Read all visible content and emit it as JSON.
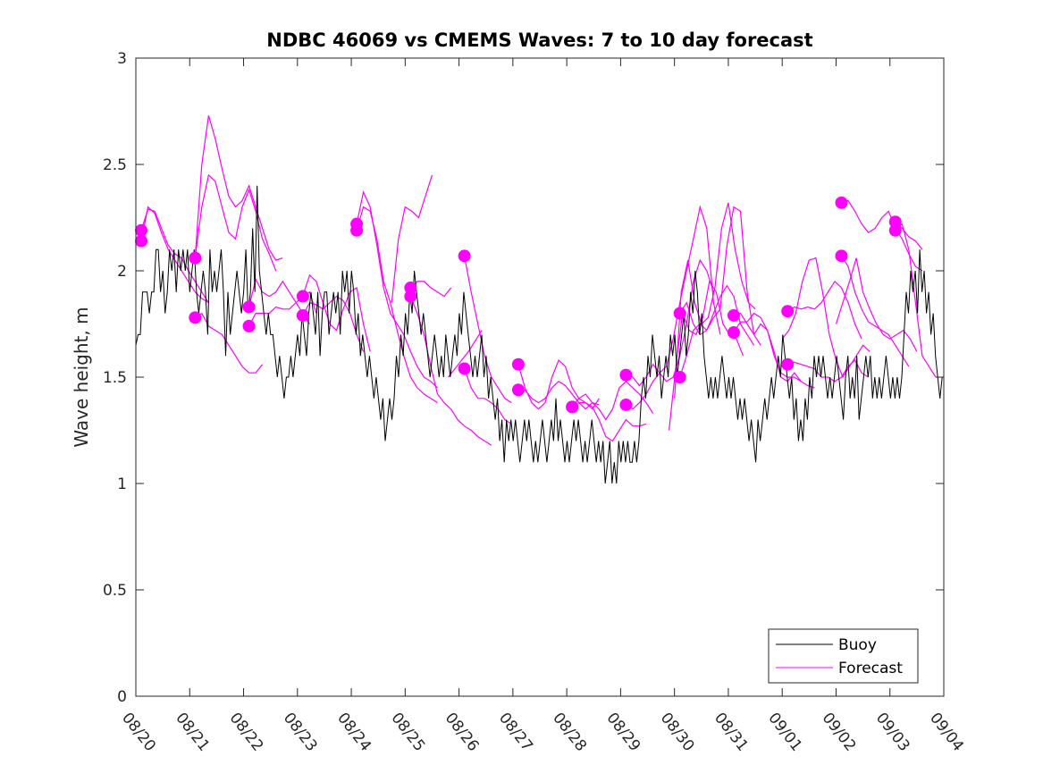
{
  "chart_data": {
    "type": "line",
    "title": "NDBC 46069 vs CMEMS Waves: 7 to 10 day forecast",
    "xlabel": "",
    "ylabel": "Wave height, m",
    "xlim_days": [
      0,
      15
    ],
    "ylim": [
      0,
      3
    ],
    "x_ticks": [
      "08/20",
      "08/21",
      "08/22",
      "08/23",
      "08/24",
      "08/25",
      "08/26",
      "08/27",
      "08/28",
      "08/29",
      "08/30",
      "08/31",
      "09/01",
      "09/02",
      "09/03",
      "09/04"
    ],
    "y_ticks": [
      0,
      0.5,
      1,
      1.5,
      2,
      2.5,
      3
    ],
    "y_tick_labels": [
      "0",
      "0.5",
      "1",
      "1.5",
      "2",
      "2.5",
      "3"
    ],
    "grid": false,
    "legend": {
      "position": "bottom-right",
      "entries": [
        {
          "label": "Buoy",
          "color": "#000000"
        },
        {
          "label": "Forecast",
          "color": "#ff00ff"
        }
      ]
    },
    "colors": {
      "buoy": "#000000",
      "forecast": "#ff00ff",
      "axes": "#262626"
    },
    "x_unit": "days since 08/20 00:00",
    "buoy": {
      "name": "Buoy",
      "step_days": 0.0417,
      "values": [
        1.65,
        1.7,
        1.7,
        1.9,
        1.9,
        1.9,
        1.8,
        1.9,
        1.9,
        2.1,
        2.1,
        1.9,
        2.0,
        1.8,
        1.9,
        2.1,
        2.0,
        2.1,
        1.9,
        2.1,
        2.0,
        2.1,
        2.0,
        2.1,
        1.9,
        2.0,
        2.1,
        1.9,
        1.8,
        1.9,
        2.0,
        1.9,
        1.7,
        2.1,
        1.9,
        2.0,
        1.9,
        2.0,
        2.1,
        1.9,
        1.6,
        1.9,
        1.7,
        1.8,
        1.9,
        2.0,
        1.9,
        1.8,
        1.9,
        2.1,
        1.8,
        1.9,
        2.2,
        1.9,
        2.4,
        2.0,
        1.9,
        1.8,
        1.7,
        1.8,
        1.7,
        1.7,
        1.6,
        1.5,
        1.6,
        1.5,
        1.4,
        1.5,
        1.5,
        1.6,
        1.5,
        1.6,
        1.7,
        1.6,
        1.8,
        1.7,
        1.6,
        1.8,
        1.9,
        1.8,
        1.7,
        1.9,
        1.6,
        1.8,
        1.9,
        1.9,
        1.7,
        1.8,
        1.9,
        1.8,
        1.9,
        1.7,
        2.0,
        1.9,
        2.0,
        1.8,
        2.0,
        1.9,
        1.7,
        1.8,
        1.6,
        1.7,
        1.6,
        1.5,
        1.6,
        1.5,
        1.4,
        1.5,
        1.4,
        1.3,
        1.4,
        1.2,
        1.3,
        1.4,
        1.3,
        1.4,
        1.6,
        1.5,
        1.7,
        1.6,
        1.8,
        1.7,
        1.9,
        1.8,
        2.0,
        1.9,
        1.8,
        1.7,
        1.8,
        1.7,
        1.6,
        1.5,
        1.6,
        1.7,
        1.6,
        1.5,
        1.6,
        1.5,
        1.7,
        1.6,
        1.5,
        1.6,
        1.7,
        1.6,
        1.8,
        1.7,
        1.9,
        1.8,
        1.7,
        1.6,
        1.5,
        1.6,
        1.5,
        1.6,
        1.7,
        1.5,
        1.6,
        1.4,
        1.5,
        1.4,
        1.3,
        1.4,
        1.2,
        1.3,
        1.1,
        1.3,
        1.2,
        1.3,
        1.2,
        1.3,
        1.2,
        1.1,
        1.2,
        1.3,
        1.2,
        1.3,
        1.2,
        1.1,
        1.2,
        1.1,
        1.2,
        1.3,
        1.2,
        1.1,
        1.2,
        1.3,
        1.2,
        1.4,
        1.2,
        1.3,
        1.2,
        1.1,
        1.2,
        1.1,
        1.2,
        1.3,
        1.2,
        1.3,
        1.2,
        1.1,
        1.2,
        1.1,
        1.2,
        1.3,
        1.2,
        1.1,
        1.2,
        1.1,
        1.2,
        1.0,
        1.1,
        1.2,
        1.0,
        1.1,
        1.0,
        1.2,
        1.1,
        1.2,
        1.1,
        1.2,
        1.1,
        1.1,
        1.2,
        1.1,
        1.2,
        1.4,
        1.5,
        1.4,
        1.6,
        1.5,
        1.7,
        1.6,
        1.5,
        1.6,
        1.4,
        1.5,
        1.6,
        1.5,
        1.7,
        1.6,
        1.7,
        1.5,
        1.6,
        1.7,
        1.8,
        1.6,
        1.7,
        1.9,
        1.8,
        2.0,
        1.9,
        1.7,
        1.8,
        1.6,
        1.5,
        1.4,
        1.5,
        1.4,
        1.5,
        1.4,
        1.5,
        1.6,
        1.5,
        1.4,
        1.5,
        1.4,
        1.5,
        1.4,
        1.3,
        1.4,
        1.3,
        1.4,
        1.3,
        1.2,
        1.3,
        1.2,
        1.1,
        1.3,
        1.2,
        1.3,
        1.4,
        1.3,
        1.4,
        1.5,
        1.4,
        1.5,
        1.6,
        1.5,
        1.7,
        1.6,
        1.5,
        1.4,
        1.5,
        1.3,
        1.4,
        1.2,
        1.3,
        1.2,
        1.4,
        1.3,
        1.5,
        1.4,
        1.6,
        1.5,
        1.6,
        1.5,
        1.6,
        1.5,
        1.4,
        1.5,
        1.4,
        1.5,
        1.6,
        1.5,
        1.4,
        1.3,
        1.5,
        1.6,
        1.4,
        1.5,
        1.4,
        1.6,
        1.3,
        1.4,
        1.5,
        1.6,
        1.5,
        1.6,
        1.4,
        1.5,
        1.4,
        1.5,
        1.4,
        1.5,
        1.6,
        1.5,
        1.4,
        1.5,
        1.4,
        1.5,
        1.4,
        1.5,
        1.7,
        1.9,
        1.8,
        2.0,
        1.9,
        2.0,
        1.8,
        2.1,
        1.9,
        2.0,
        1.8,
        1.9,
        1.7,
        1.8,
        1.6,
        1.5,
        1.4,
        1.5
      ]
    },
    "forecast_runs": [
      {
        "start_day": 0.1,
        "marker": 2.19,
        "values": [
          2.19,
          2.29,
          2.28,
          2.2,
          2.12,
          2.08,
          2.06,
          2.0,
          1.95,
          1.9,
          1.85
        ]
      },
      {
        "start_day": 0.1,
        "marker": 2.14,
        "values": [
          2.14,
          2.3,
          2.27,
          2.18,
          2.1,
          2.05,
          2.0,
          1.95,
          1.9,
          1.87,
          1.85
        ]
      },
      {
        "start_day": 1.1,
        "marker": 2.06,
        "values": [
          2.06,
          2.3,
          2.45,
          2.42,
          2.3,
          2.18,
          2.15,
          2.3,
          2.38,
          2.28,
          2.15,
          2.08,
          2.0
        ]
      },
      {
        "start_day": 1.1,
        "marker": 1.78,
        "values": [
          1.78,
          1.8,
          1.74,
          1.72,
          1.7,
          1.65,
          1.6,
          1.55,
          1.52,
          1.52,
          1.56
        ]
      },
      {
        "start_day": 1.1,
        "marker": 2.06,
        "values": [
          2.06,
          2.5,
          2.73,
          2.62,
          2.48,
          2.35,
          2.3,
          2.33,
          2.4,
          2.3,
          2.2,
          2.1,
          2.05,
          2.06
        ]
      },
      {
        "start_day": 2.1,
        "marker": 1.83,
        "values": [
          1.83,
          1.96,
          1.9,
          1.88,
          1.9,
          1.95,
          1.9,
          1.85,
          1.8,
          1.75
        ]
      },
      {
        "start_day": 2.1,
        "marker": 1.74,
        "values": [
          1.74,
          1.8,
          1.8,
          1.8,
          1.83,
          1.82,
          1.82,
          1.85,
          1.88,
          1.9,
          1.8
        ]
      },
      {
        "start_day": 3.1,
        "marker": 1.88,
        "values": [
          1.88,
          1.98,
          1.95,
          1.85,
          1.75,
          1.72,
          1.82,
          1.9,
          1.92,
          1.75,
          1.62
        ]
      },
      {
        "start_day": 3.1,
        "marker": 1.79,
        "values": [
          1.79,
          1.85,
          1.84,
          1.82,
          1.85,
          1.88,
          1.86,
          1.8,
          1.7,
          1.62
        ]
      },
      {
        "start_day": 4.1,
        "marker": 2.22,
        "values": [
          2.22,
          2.37,
          2.3,
          2.12,
          1.92,
          1.8,
          1.75,
          1.7,
          1.62,
          1.55,
          1.5,
          1.48,
          1.45
        ]
      },
      {
        "start_day": 4.1,
        "marker": 2.19,
        "values": [
          2.19,
          2.3,
          2.28,
          2.15,
          1.95,
          1.85,
          1.72,
          1.6,
          1.5,
          1.45,
          1.42,
          1.4,
          1.38
        ]
      },
      {
        "start_day": 5.1,
        "marker": 1.92,
        "values": [
          1.92,
          1.95,
          1.95,
          1.92,
          1.9,
          1.88,
          1.92
        ]
      },
      {
        "start_day": 4.75,
        "marker": null,
        "values": [
          1.85,
          2.15,
          2.3,
          2.28,
          2.25,
          2.35,
          2.45
        ]
      },
      {
        "start_day": 5.1,
        "marker": 1.88,
        "values": [
          1.88,
          1.8,
          1.7,
          1.55,
          1.42,
          1.38,
          1.35,
          1.3,
          1.27,
          1.25,
          1.22,
          1.2,
          1.18
        ]
      },
      {
        "start_day": 6.1,
        "marker": 2.07,
        "values": [
          2.07,
          1.9,
          1.75,
          1.6,
          1.5,
          1.45,
          1.4,
          1.38
        ]
      },
      {
        "start_day": 6.1,
        "marker": 1.54,
        "values": [
          1.54,
          1.45,
          1.4,
          1.4,
          1.38,
          1.35,
          1.3,
          1.28
        ]
      },
      {
        "start_day": 5.8,
        "marker": null,
        "values": [
          1.5,
          1.54,
          1.58,
          1.62,
          1.67,
          1.72
        ]
      },
      {
        "start_day": 7.1,
        "marker": 1.56,
        "values": [
          1.56,
          1.45,
          1.38,
          1.35,
          1.38,
          1.5,
          1.58,
          1.55,
          1.45,
          1.4,
          1.38,
          1.35,
          1.4
        ]
      },
      {
        "start_day": 7.1,
        "marker": 1.44,
        "values": [
          1.44,
          1.44,
          1.4,
          1.38,
          1.4,
          1.45,
          1.48,
          1.46,
          1.42,
          1.38,
          1.35,
          1.38,
          1.37
        ]
      },
      {
        "start_day": 8.1,
        "marker": 1.36,
        "values": [
          1.36,
          1.4,
          1.42,
          1.38,
          1.35,
          1.3,
          1.35,
          1.45,
          1.48,
          1.45,
          1.42,
          1.38,
          1.33
        ]
      },
      {
        "start_day": 8.1,
        "marker": 1.36,
        "values": [
          1.36,
          1.38,
          1.38,
          1.36,
          1.3,
          1.22,
          1.2,
          1.25,
          1.3,
          1.27,
          1.27,
          1.28
        ]
      },
      {
        "start_day": 9.1,
        "marker": 1.51,
        "values": [
          1.51,
          1.5,
          1.46,
          1.5,
          1.56,
          1.52,
          1.48,
          1.5,
          1.6,
          1.75,
          1.95,
          2.05,
          2.0,
          1.9
        ]
      },
      {
        "start_day": 9.1,
        "marker": 1.37,
        "values": [
          1.37,
          1.35,
          1.38,
          1.42,
          1.48,
          1.52,
          1.55,
          1.68,
          1.85,
          2.0,
          2.15,
          2.3,
          2.2,
          1.85,
          1.7
        ]
      },
      {
        "start_day": 10.1,
        "marker": 1.8,
        "values": [
          1.8,
          1.85,
          1.75,
          1.7,
          1.72,
          1.78,
          1.82,
          2.12,
          2.3,
          2.28,
          1.9,
          1.7,
          1.65
        ]
      },
      {
        "start_day": 10.1,
        "marker": 1.5,
        "values": [
          1.5,
          1.6,
          1.72,
          1.75,
          1.72,
          1.8,
          1.88,
          1.93,
          1.88,
          1.75,
          1.7,
          1.65
        ]
      },
      {
        "start_day": 10.0,
        "marker": null,
        "values": [
          1.4,
          1.9,
          2.05,
          1.85,
          1.75,
          1.78,
          1.92,
          2.2,
          2.32,
          2.1,
          1.95,
          1.85,
          1.82
        ]
      },
      {
        "start_day": 9.9,
        "marker": null,
        "values": [
          1.25,
          1.55,
          1.8,
          1.72,
          1.7,
          1.78,
          1.95,
          1.9,
          1.75,
          1.7,
          1.68,
          1.6
        ]
      },
      {
        "start_day": 11.1,
        "marker": 1.79,
        "values": [
          1.79,
          1.8,
          1.75,
          1.7,
          1.75,
          1.72,
          1.6,
          1.52,
          1.5,
          1.5,
          1.48,
          1.46,
          1.45
        ]
      },
      {
        "start_day": 11.1,
        "marker": 1.71,
        "values": [
          1.71,
          1.76,
          1.76,
          1.8,
          1.78,
          1.72,
          1.62,
          1.5,
          1.48,
          1.52,
          1.48
        ]
      },
      {
        "start_day": 12.1,
        "marker": 1.81,
        "values": [
          1.81,
          1.83,
          1.82,
          1.83,
          1.82,
          1.85,
          1.9,
          1.95,
          1.92,
          1.85,
          1.75,
          1.68
        ]
      },
      {
        "start_day": 12.1,
        "marker": 1.56,
        "values": [
          1.56,
          1.57,
          1.56,
          1.55,
          1.54,
          1.5,
          1.5,
          1.48,
          1.5,
          1.55,
          1.58,
          1.52,
          1.5
        ]
      },
      {
        "start_day": 12.0,
        "marker": null,
        "values": [
          1.68,
          1.72,
          1.8,
          1.95,
          2.05,
          2.06,
          1.9,
          1.7,
          1.58,
          1.5,
          1.55,
          1.6,
          1.65,
          1.62
        ]
      },
      {
        "start_day": 13.1,
        "marker": 2.32,
        "values": [
          2.32,
          2.33,
          2.28,
          2.22,
          2.18,
          2.2,
          2.25,
          2.28,
          2.2,
          2.15,
          2.08,
          2.02,
          2.0
        ]
      },
      {
        "start_day": 13.1,
        "marker": 2.07,
        "values": [
          2.07,
          2.02,
          1.9,
          1.82,
          1.76,
          1.74,
          1.72,
          1.7,
          1.65,
          1.6,
          1.55
        ]
      },
      {
        "start_day": 13.0,
        "marker": null,
        "values": [
          1.75,
          1.85,
          1.95,
          2.06,
          1.9,
          1.82,
          1.75,
          1.7,
          1.68,
          1.7,
          1.72,
          1.68,
          1.62
        ]
      },
      {
        "start_day": 14.1,
        "marker": 2.23,
        "values": [
          2.23,
          2.2,
          2.16,
          2.14,
          2.1
        ]
      },
      {
        "start_day": 14.1,
        "marker": 2.19,
        "values": [
          2.19,
          2.22,
          2.1,
          1.85,
          1.6,
          1.55,
          1.5
        ]
      }
    ],
    "forecast_run_step_days": 0.125
  }
}
